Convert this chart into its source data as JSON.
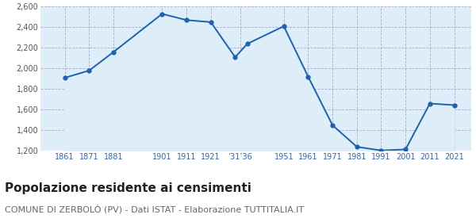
{
  "years": [
    1861,
    1871,
    1881,
    1901,
    1911,
    1921,
    1931,
    1936,
    1951,
    1961,
    1971,
    1981,
    1991,
    2001,
    2011,
    2021
  ],
  "population": [
    1910,
    1980,
    2160,
    2530,
    2470,
    2450,
    2110,
    2240,
    2410,
    1920,
    1450,
    1240,
    1205,
    1215,
    1660,
    1645
  ],
  "line_color": "#2060b0",
  "fill_color": "#ddeef8",
  "marker_color": "#2060b0",
  "background_color": "#ffffff",
  "grid_color": "#aaaacc",
  "ylim": [
    1200,
    2600
  ],
  "yticks": [
    1200,
    1400,
    1600,
    1800,
    2000,
    2200,
    2400,
    2600
  ],
  "x_tick_pos": [
    1861,
    1871,
    1881,
    1901,
    1911,
    1921,
    1933,
    1951,
    1961,
    1971,
    1981,
    1991,
    2001,
    2011,
    2021
  ],
  "x_tick_labels": [
    "1861",
    "1871",
    "1881",
    "1901",
    "1911",
    "1921",
    "’31’36",
    "1951",
    "1961",
    "1971",
    "1981",
    "1991",
    "2001",
    "2011",
    "2021"
  ],
  "title": "Popolazione residente ai censimenti",
  "subtitle": "COMUNE DI ZERBOLÒ (PV) - Dati ISTAT - Elaborazione TUTTITALIA.IT",
  "title_fontsize": 11,
  "subtitle_fontsize": 8,
  "xlim_left": 1851,
  "xlim_right": 2028
}
